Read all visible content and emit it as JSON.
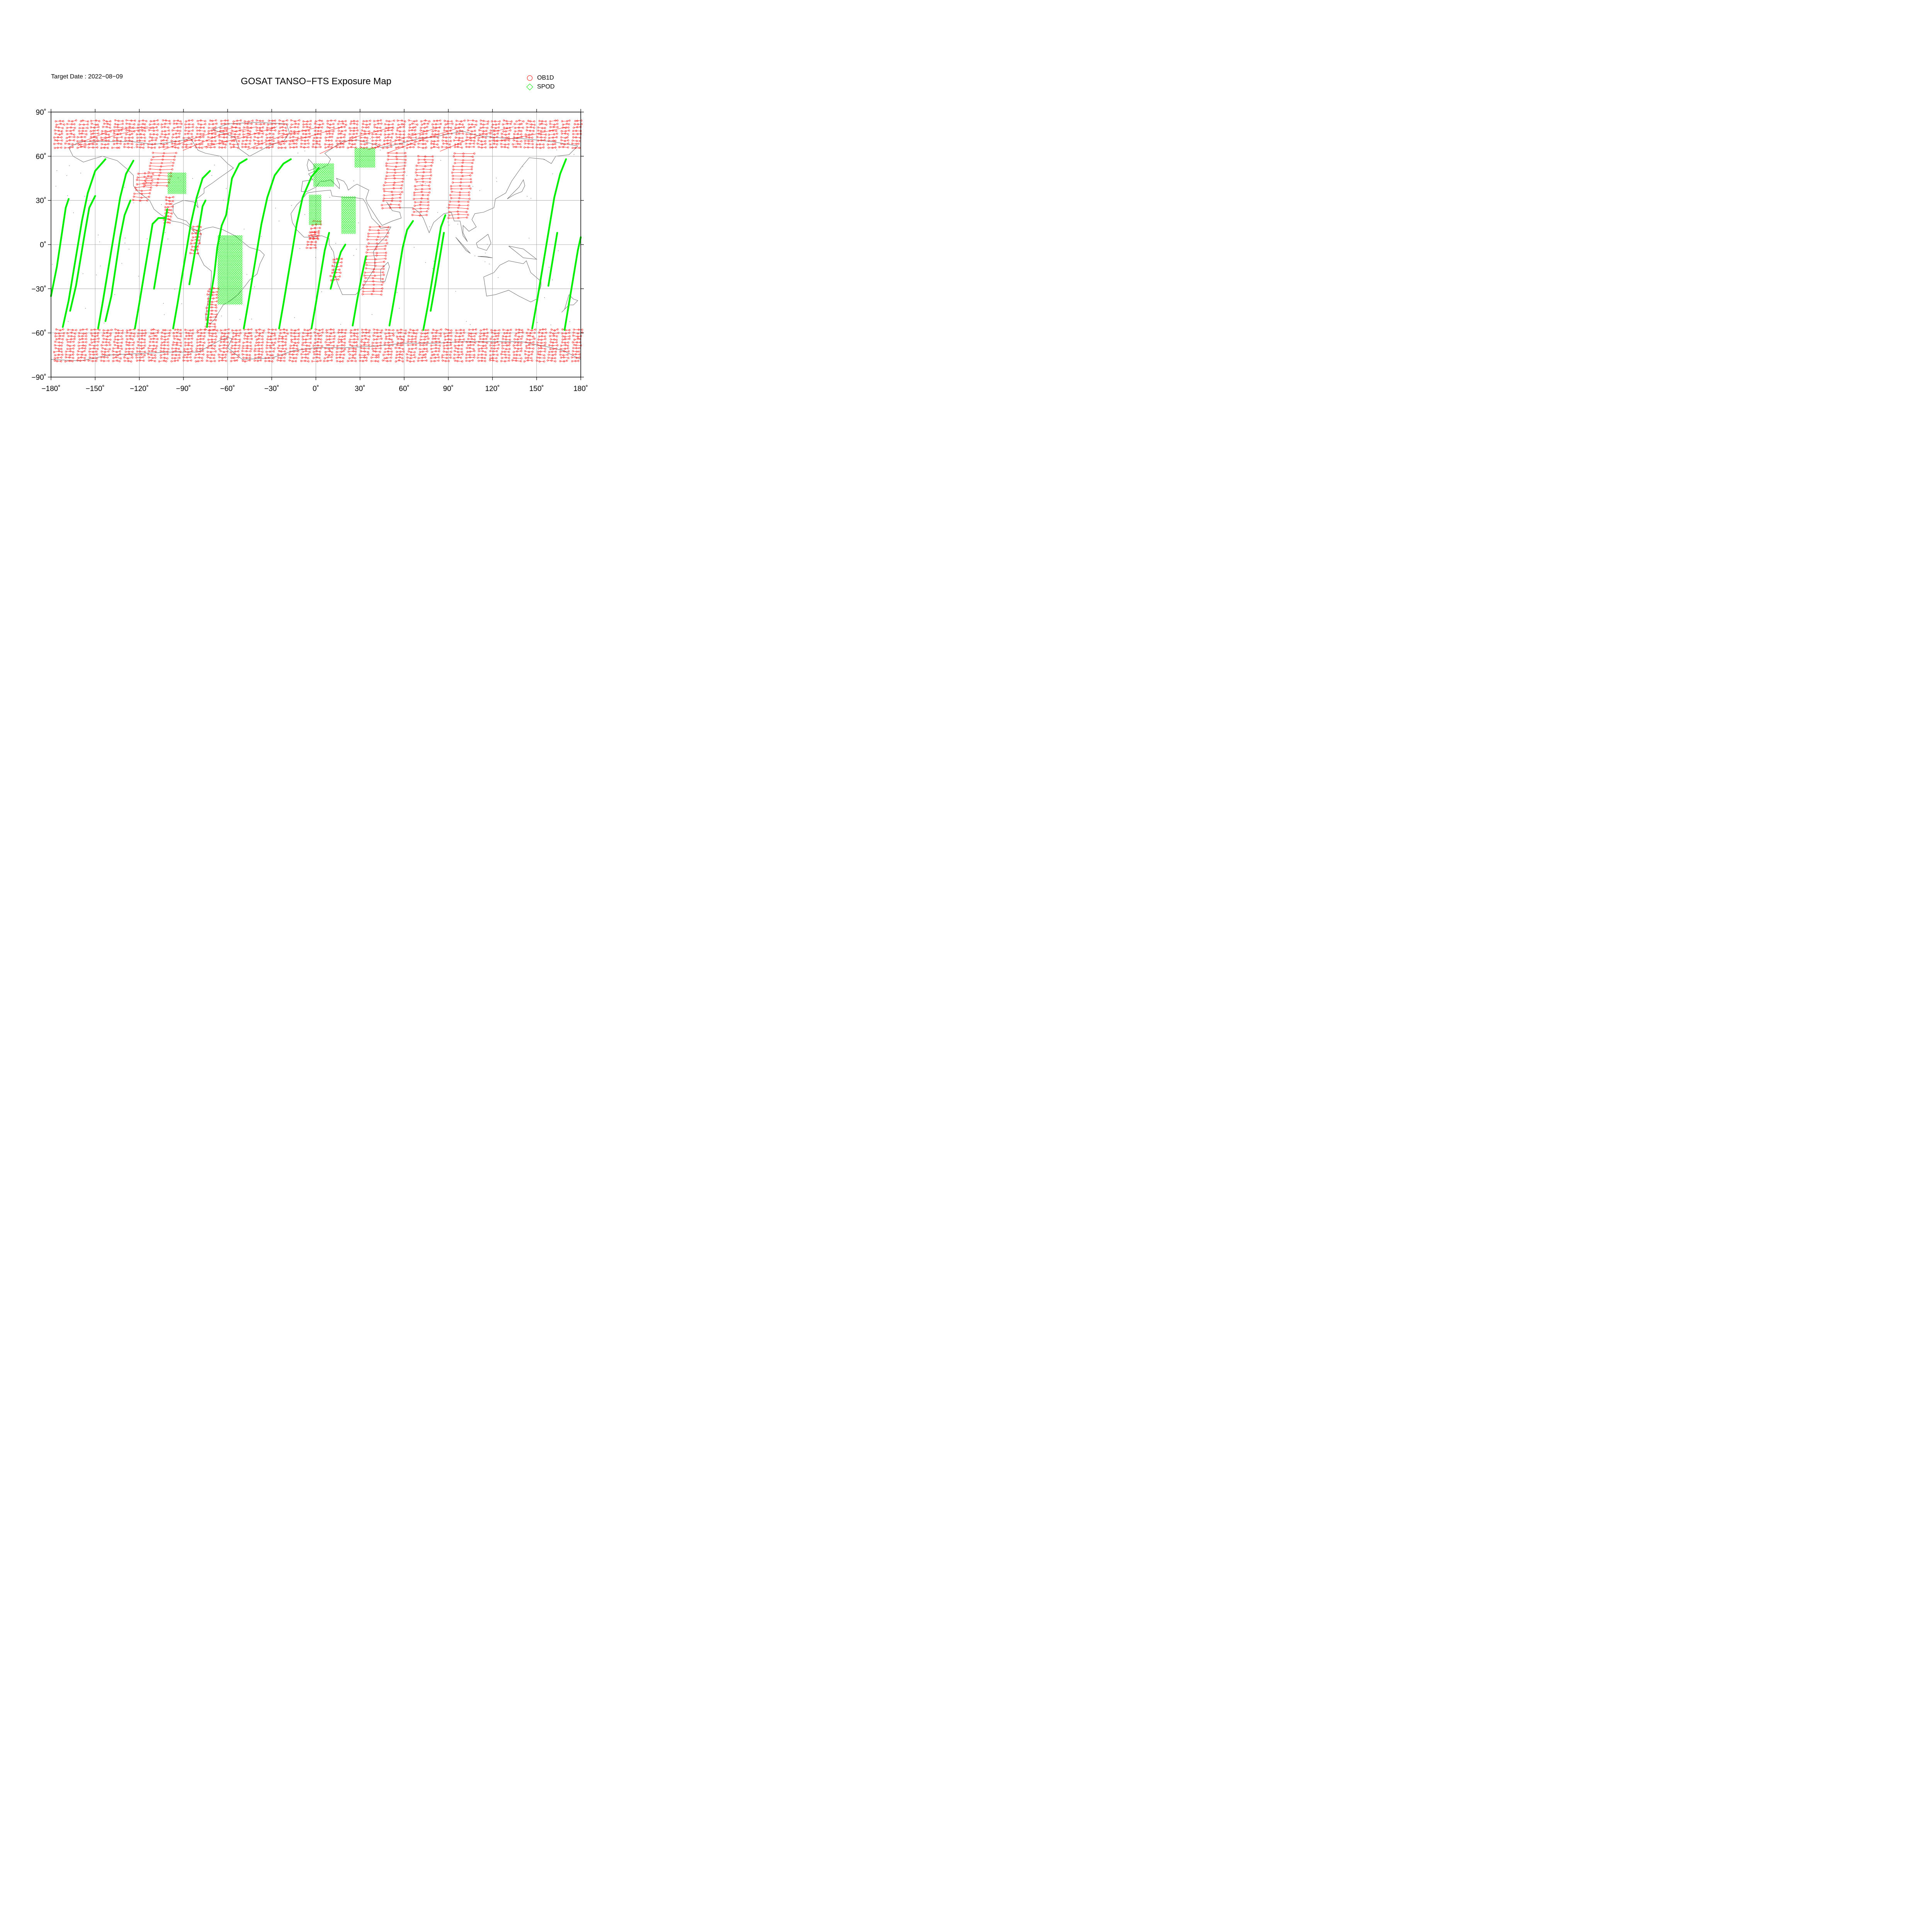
{
  "header": {
    "target_date": "Target Date : 2022−08−09",
    "title": "GOSAT TANSO−FTS Exposure Map"
  },
  "legend": [
    {
      "label": "OB1D",
      "symbol": "circle",
      "color": "#ff0000"
    },
    {
      "label": "SPOD",
      "symbol": "diamond",
      "color": "#00ee00"
    }
  ],
  "map": {
    "projection": "equirectangular",
    "lon_range": [
      -180,
      180
    ],
    "lat_range": [
      -90,
      90
    ],
    "lon_ticks": [
      {
        "value": -180,
        "label": "−180˚"
      },
      {
        "value": -150,
        "label": "−150˚"
      },
      {
        "value": -120,
        "label": "−120˚"
      },
      {
        "value": -90,
        "label": "−90˚"
      },
      {
        "value": -60,
        "label": "−60˚"
      },
      {
        "value": -30,
        "label": "−30˚"
      },
      {
        "value": 0,
        "label": "0˚"
      },
      {
        "value": 30,
        "label": "30˚"
      },
      {
        "value": 60,
        "label": "60˚"
      },
      {
        "value": 90,
        "label": "90˚"
      },
      {
        "value": 120,
        "label": "120˚"
      },
      {
        "value": 150,
        "label": "150˚"
      },
      {
        "value": 180,
        "label": "180˚"
      }
    ],
    "lat_ticks": [
      {
        "value": 90,
        "label": "90˚"
      },
      {
        "value": 60,
        "label": "60˚"
      },
      {
        "value": 30,
        "label": "30˚"
      },
      {
        "value": 0,
        "label": "0˚"
      },
      {
        "value": -30,
        "label": "−30˚"
      },
      {
        "value": -60,
        "label": "−60˚"
      },
      {
        "value": -90,
        "label": "−90˚"
      }
    ],
    "grid": true,
    "colors": {
      "ob1d": "#ff0000",
      "spod": "#00ee00",
      "coast": "#666666",
      "grid": "#999999"
    },
    "spod_tracks": [
      [
        [
          -180,
          -35
        ],
        [
          -176,
          -15
        ],
        [
          -173,
          5
        ],
        [
          -170,
          25
        ],
        [
          -168,
          31
        ]
      ],
      [
        [
          -172,
          -56
        ],
        [
          -168,
          -38
        ],
        [
          -165,
          -20
        ],
        [
          -162,
          -2
        ],
        [
          -159,
          16
        ],
        [
          -155,
          35
        ],
        [
          -150,
          50
        ],
        [
          -143,
          58
        ]
      ],
      [
        [
          -167,
          -45
        ],
        [
          -163,
          -28
        ],
        [
          -160,
          -10
        ],
        [
          -157,
          8
        ],
        [
          -154,
          25
        ],
        [
          -150,
          33
        ]
      ],
      [
        [
          -148,
          -57
        ],
        [
          -145,
          -40
        ],
        [
          -142,
          -22
        ],
        [
          -139,
          -4
        ],
        [
          -136,
          14
        ],
        [
          -133,
          32
        ],
        [
          -129,
          48
        ],
        [
          -124,
          57
        ]
      ],
      [
        [
          -143,
          -52
        ],
        [
          -139,
          -35
        ],
        [
          -136,
          -15
        ],
        [
          -133,
          5
        ],
        [
          -130,
          20
        ],
        [
          -126,
          30
        ]
      ],
      [
        [
          -123,
          -57
        ],
        [
          -120,
          -40
        ],
        [
          -117,
          -22
        ],
        [
          -114,
          -4
        ],
        [
          -111,
          14
        ],
        [
          -107,
          18
        ],
        [
          -102,
          18
        ]
      ],
      [
        [
          -110,
          -30
        ],
        [
          -107,
          -12
        ],
        [
          -104,
          6
        ],
        [
          -101,
          24
        ]
      ],
      [
        [
          -97,
          -57
        ],
        [
          -94,
          -40
        ],
        [
          -91,
          -22
        ],
        [
          -88,
          -4
        ],
        [
          -85,
          14
        ],
        [
          -81,
          32
        ],
        [
          -77,
          45
        ],
        [
          -72,
          50
        ]
      ],
      [
        [
          -86,
          -27
        ],
        [
          -83,
          -10
        ],
        [
          -80,
          8
        ],
        [
          -77,
          26
        ],
        [
          -75,
          30
        ]
      ],
      [
        [
          -74,
          -56
        ],
        [
          -72,
          -38
        ],
        [
          -69,
          -20
        ],
        [
          -67,
          -2
        ],
        [
          -64,
          13
        ],
        [
          -61,
          20
        ],
        [
          -57,
          45
        ],
        [
          -52,
          55
        ],
        [
          -47,
          58
        ]
      ],
      [
        [
          -49,
          -57
        ],
        [
          -46,
          -40
        ],
        [
          -43,
          -22
        ],
        [
          -40,
          -4
        ],
        [
          -37,
          14
        ],
        [
          -33,
          32
        ],
        [
          -28,
          47
        ],
        [
          -22,
          55
        ],
        [
          -17,
          58
        ]
      ],
      [
        [
          -25,
          -57
        ],
        [
          -22,
          -40
        ],
        [
          -19,
          -22
        ],
        [
          -16,
          -4
        ],
        [
          -13,
          14
        ],
        [
          -9,
          32
        ],
        [
          -3,
          46
        ],
        [
          2,
          52
        ]
      ],
      [
        [
          -3,
          -57
        ],
        [
          0,
          -40
        ],
        [
          3,
          -22
        ],
        [
          6,
          -4
        ],
        [
          9,
          8
        ]
      ],
      [
        [
          10,
          -30
        ],
        [
          14,
          -15
        ],
        [
          17,
          -5
        ],
        [
          20,
          0
        ]
      ],
      [
        [
          25,
          -55
        ],
        [
          28,
          -38
        ],
        [
          31,
          -22
        ],
        [
          34,
          -8
        ]
      ],
      [
        [
          50,
          -55
        ],
        [
          53,
          -38
        ],
        [
          56,
          -20
        ],
        [
          59,
          -2
        ],
        [
          62,
          10
        ],
        [
          66,
          16
        ]
      ],
      [
        [
          73,
          -58
        ],
        [
          76,
          -42
        ],
        [
          79,
          -24
        ],
        [
          82,
          -6
        ],
        [
          85,
          12
        ],
        [
          88,
          20
        ]
      ],
      [
        [
          78,
          -45
        ],
        [
          81,
          -28
        ],
        [
          84,
          -10
        ],
        [
          87,
          8
        ]
      ],
      [
        [
          147,
          -57
        ],
        [
          150,
          -40
        ],
        [
          153,
          -22
        ],
        [
          156,
          -4
        ],
        [
          159,
          14
        ],
        [
          162,
          32
        ],
        [
          166,
          48
        ],
        [
          170,
          58
        ]
      ],
      [
        [
          158,
          -28
        ],
        [
          161,
          -10
        ],
        [
          164,
          8
        ]
      ],
      [
        [
          169,
          -58
        ],
        [
          172,
          -40
        ],
        [
          175,
          -22
        ],
        [
          178,
          -4
        ],
        [
          180,
          5
        ]
      ]
    ],
    "spod_grids": [
      {
        "lon": [
          -100,
          -88
        ],
        "lat": [
          35,
          49
        ]
      },
      {
        "lon": [
          -4,
          4
        ],
        "lat": [
          14,
          34
        ]
      },
      {
        "lon": [
          -1,
          12
        ],
        "lat": [
          40,
          55
        ]
      },
      {
        "lon": [
          18,
          27
        ],
        "lat": [
          8,
          32
        ]
      },
      {
        "lon": [
          27,
          40
        ],
        "lat": [
          53,
          66
        ]
      },
      {
        "lon": [
          -66,
          -50
        ],
        "lat": [
          -40,
          6
        ]
      }
    ],
    "ob1d_swaths": [
      {
        "lon": [
          -124,
          -110
        ],
        "lat": [
          30,
          48
        ]
      },
      {
        "lon": [
          -103,
          -97
        ],
        "lat": [
          15,
          32
        ]
      },
      {
        "lon": [
          -85,
          -78
        ],
        "lat": [
          -6,
          12
        ]
      },
      {
        "lon": [
          -4,
          4
        ],
        "lat": [
          4,
          16
        ]
      },
      {
        "lon": [
          -6,
          2
        ],
        "lat": [
          -2,
          8
        ]
      },
      {
        "lon": [
          10,
          18
        ],
        "lat": [
          -24,
          -10
        ]
      },
      {
        "lon": [
          32,
          50
        ],
        "lat": [
          -34,
          12
        ]
      },
      {
        "lon": [
          45,
          62
        ],
        "lat": [
          25,
          62
        ]
      },
      {
        "lon": [
          66,
          80
        ],
        "lat": [
          20,
          60
        ]
      },
      {
        "lon": [
          90,
          108
        ],
        "lat": [
          18,
          62
        ]
      },
      {
        "lon": [
          -75,
          -66
        ],
        "lat": [
          -58,
          -30
        ]
      },
      {
        "lon": [
          -116,
          -94
        ],
        "lat": [
          40,
          62
        ]
      }
    ],
    "ob1d_bands": [
      {
        "lat": [
          66,
          84
        ]
      },
      {
        "lat": [
          -79,
          -58
        ]
      }
    ]
  }
}
